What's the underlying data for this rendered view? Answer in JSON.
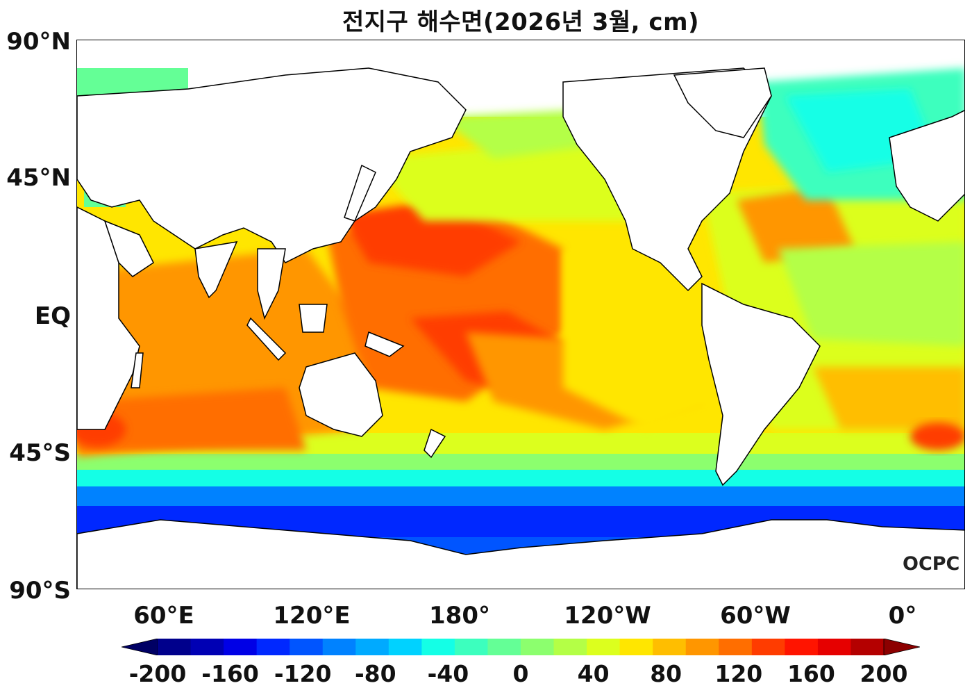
{
  "title": "전지구 해수면(2026년 3월, cm)",
  "lat_labels": [
    "90°N",
    "45°N",
    "EQ",
    "45°S",
    "90°S"
  ],
  "lon_labels": [
    "60°E",
    "120°E",
    "180°",
    "120°W",
    "60°W",
    "0°"
  ],
  "colorbar": {
    "tick_labels": [
      "-200",
      "-160",
      "-120",
      "-80",
      "-40",
      "0",
      "40",
      "80",
      "120",
      "160",
      "200"
    ],
    "colors": [
      "#00008c",
      "#0000b4",
      "#0000e6",
      "#0028ff",
      "#0055ff",
      "#0082ff",
      "#00aaff",
      "#00d2ff",
      "#14ffe6",
      "#3cffbe",
      "#64ff96",
      "#8cff6e",
      "#b4ff46",
      "#dcff1e",
      "#ffe600",
      "#ffbe00",
      "#ff9600",
      "#ff6e00",
      "#ff3c00",
      "#ff1400",
      "#e60000",
      "#b40000"
    ],
    "min_color": "#000064",
    "max_color": "#8c0000"
  },
  "logo": "OCPC"
}
